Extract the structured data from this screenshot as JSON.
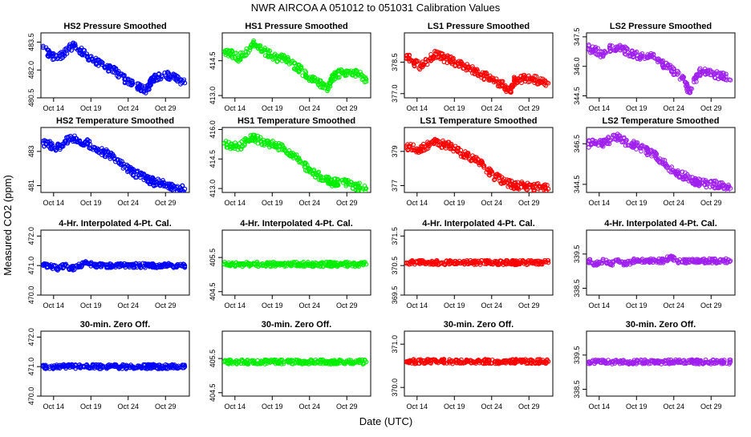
{
  "figure": {
    "main_title": "NWR   AIRCOA A   051012 to 051031   Calibration Values",
    "xlabel": "Date (UTC)",
    "ylabel": "Measured CO2 (ppm)"
  },
  "colors": {
    "HS2": "#0000ff",
    "HS1": "#00ee00",
    "LS1": "#ff0000",
    "LS2": "#a020f0"
  },
  "chart_data": [
    {
      "type": "scatter",
      "row": 0,
      "col": 0,
      "series": "HS2",
      "title": "HS2 Pressure Smoothed",
      "x_ticks": [
        "Oct 14",
        "Oct 19",
        "Oct 24",
        "Oct 29"
      ],
      "x_tick_days": [
        14,
        19,
        24,
        29
      ],
      "xlim": [
        12.3,
        32.2
      ],
      "y_ticks": [
        "480.5",
        "482.0",
        "483.5"
      ],
      "y_tick_values": [
        480.5,
        482.0,
        483.5
      ],
      "ylim": [
        480.5,
        484.0
      ],
      "x": [
        12.6,
        13.5,
        14.5,
        15.5,
        16.5,
        17.5,
        18.5,
        19.5,
        20.5,
        21.5,
        22.5,
        23.5,
        24.5,
        25.5,
        26.5,
        27.0,
        27.5,
        28.5,
        29.5,
        30.5,
        31.6
      ],
      "y": [
        483.2,
        482.8,
        482.6,
        482.9,
        483.3,
        483.1,
        482.7,
        482.5,
        482.3,
        482.1,
        481.9,
        481.5,
        481.3,
        481.1,
        480.9,
        481.3,
        481.6,
        481.7,
        481.7,
        481.5,
        481.3
      ]
    },
    {
      "type": "scatter",
      "row": 0,
      "col": 1,
      "series": "HS1",
      "title": "HS1 Pressure Smoothed",
      "x_ticks": [
        "Oct 14",
        "Oct 19",
        "Oct 24",
        "Oct 29"
      ],
      "x_tick_days": [
        14,
        19,
        24,
        29
      ],
      "xlim": [
        12.3,
        32.2
      ],
      "y_ticks": [
        "413.0",
        "414.5"
      ],
      "y_tick_values": [
        413.0,
        414.5
      ],
      "ylim": [
        412.9,
        415.7
      ],
      "x": [
        12.6,
        13.5,
        14.5,
        15.5,
        16.5,
        17.5,
        18.5,
        19.5,
        20.5,
        21.5,
        22.5,
        23.5,
        24.5,
        25.5,
        26.5,
        27.0,
        27.5,
        28.5,
        29.5,
        30.5,
        31.6
      ],
      "y": [
        414.9,
        414.8,
        414.6,
        414.9,
        415.2,
        415.0,
        414.8,
        414.6,
        414.6,
        414.4,
        414.2,
        413.9,
        413.7,
        413.5,
        413.3,
        413.7,
        413.9,
        414.0,
        414.0,
        413.9,
        413.7
      ]
    },
    {
      "type": "scatter",
      "row": 0,
      "col": 2,
      "series": "LS1",
      "title": "LS1 Pressure Smoothed",
      "x_ticks": [
        "Oct 14",
        "Oct 19",
        "Oct 24",
        "Oct 29"
      ],
      "x_tick_days": [
        14,
        19,
        24,
        29
      ],
      "xlim": [
        12.3,
        32.2
      ],
      "y_ticks": [
        "377.0",
        "378.5"
      ],
      "y_tick_values": [
        377.0,
        378.5
      ],
      "ylim": [
        376.8,
        379.9
      ],
      "x": [
        12.6,
        13.5,
        14.5,
        15.5,
        16.5,
        17.5,
        18.5,
        19.5,
        20.5,
        21.5,
        22.5,
        23.5,
        24.5,
        25.5,
        26.5,
        27.0,
        27.5,
        28.5,
        29.5,
        30.5,
        31.6
      ],
      "y": [
        378.8,
        378.5,
        378.3,
        378.6,
        378.9,
        378.7,
        378.6,
        378.4,
        378.3,
        378.1,
        377.9,
        377.8,
        377.6,
        377.4,
        377.1,
        377.6,
        377.7,
        377.7,
        377.7,
        377.6,
        377.5
      ]
    },
    {
      "type": "scatter",
      "row": 0,
      "col": 3,
      "series": "LS2",
      "title": "LS2 Pressure Smoothed",
      "x_ticks": [
        "Oct 14",
        "Oct 19",
        "Oct 24",
        "Oct 29"
      ],
      "x_tick_days": [
        14,
        19,
        24,
        29
      ],
      "xlim": [
        12.3,
        32.2
      ],
      "y_ticks": [
        "344.5",
        "346.0",
        "347.5"
      ],
      "y_tick_values": [
        344.5,
        346.0,
        347.5
      ],
      "ylim": [
        344.4,
        347.7
      ],
      "x": [
        12.6,
        13.5,
        14.5,
        15.5,
        16.5,
        17.5,
        18.5,
        19.5,
        20.5,
        21.5,
        22.5,
        23.5,
        24.5,
        25.5,
        26.0,
        27.0,
        27.5,
        28.5,
        29.5,
        30.5,
        31.6
      ],
      "y": [
        346.9,
        346.8,
        346.6,
        346.9,
        347.0,
        346.8,
        346.6,
        346.5,
        346.6,
        346.4,
        346.1,
        345.9,
        345.6,
        345.2,
        344.7,
        345.4,
        345.7,
        345.7,
        345.6,
        345.5,
        345.3
      ]
    },
    {
      "type": "scatter",
      "row": 1,
      "col": 0,
      "series": "HS2",
      "title": "HS2 Temperature Smoothed",
      "x_ticks": [
        "Oct 14",
        "Oct 19",
        "Oct 24",
        "Oct 29"
      ],
      "x_tick_days": [
        14,
        19,
        24,
        29
      ],
      "xlim": [
        12.3,
        32.2
      ],
      "y_ticks": [
        "481",
        "483"
      ],
      "y_tick_values": [
        481,
        483
      ],
      "ylim": [
        480.6,
        484.4
      ],
      "x": [
        12.6,
        13.5,
        14.5,
        15.5,
        16.5,
        17.5,
        18.5,
        19.5,
        20.5,
        21.5,
        22.5,
        23.5,
        24.5,
        25.5,
        26.5,
        27.0,
        27.5,
        28.5,
        29.5,
        30.5,
        31.6
      ],
      "y": [
        483.5,
        483.4,
        483.2,
        483.6,
        483.8,
        483.6,
        483.5,
        483.2,
        483.0,
        482.8,
        482.5,
        482.1,
        481.8,
        481.6,
        481.4,
        481.3,
        481.2,
        481.2,
        481.0,
        480.9,
        480.8
      ]
    },
    {
      "type": "scatter",
      "row": 1,
      "col": 1,
      "series": "HS1",
      "title": "HS1 Temperature Smoothed",
      "x_ticks": [
        "Oct 14",
        "Oct 19",
        "Oct 24",
        "Oct 29"
      ],
      "x_tick_days": [
        14,
        19,
        24,
        29
      ],
      "xlim": [
        12.3,
        32.2
      ],
      "y_ticks": [
        "413.0",
        "414.5",
        "416.0"
      ],
      "y_tick_values": [
        413.0,
        414.5,
        416.0
      ],
      "ylim": [
        412.8,
        416.1
      ],
      "x": [
        12.6,
        13.5,
        14.5,
        15.5,
        16.5,
        17.5,
        18.5,
        19.5,
        20.5,
        21.5,
        22.5,
        23.5,
        24.5,
        25.5,
        26.5,
        27.0,
        27.5,
        28.5,
        29.5,
        30.5,
        31.6
      ],
      "y": [
        415.3,
        415.2,
        415.1,
        415.4,
        415.6,
        415.4,
        415.3,
        415.2,
        415.0,
        414.8,
        414.5,
        414.1,
        413.8,
        413.6,
        413.4,
        413.3,
        413.3,
        413.3,
        413.2,
        413.1,
        413.0
      ]
    },
    {
      "type": "scatter",
      "row": 1,
      "col": 2,
      "series": "LS1",
      "title": "LS1 Temperature Smoothed",
      "x_ticks": [
        "Oct 14",
        "Oct 19",
        "Oct 24",
        "Oct 29"
      ],
      "x_tick_days": [
        14,
        19,
        24,
        29
      ],
      "xlim": [
        12.3,
        32.2
      ],
      "y_ticks": [
        "377",
        "379"
      ],
      "y_tick_values": [
        377,
        379
      ],
      "ylim": [
        376.6,
        380.4
      ],
      "x": [
        12.6,
        13.5,
        14.5,
        15.5,
        16.5,
        17.5,
        18.5,
        19.5,
        20.5,
        21.5,
        22.5,
        23.5,
        24.5,
        25.5,
        26.5,
        27.0,
        27.5,
        28.5,
        29.5,
        30.5,
        31.6
      ],
      "y": [
        379.3,
        379.2,
        379.1,
        379.4,
        379.6,
        379.4,
        379.3,
        379.0,
        378.8,
        378.6,
        378.3,
        377.9,
        377.5,
        377.3,
        377.1,
        377.0,
        377.0,
        377.0,
        376.9,
        376.9,
        376.8
      ]
    },
    {
      "type": "scatter",
      "row": 1,
      "col": 3,
      "series": "LS2",
      "title": "LS2 Temperature Smoothed",
      "x_ticks": [
        "Oct 14",
        "Oct 19",
        "Oct 24",
        "Oct 29"
      ],
      "x_tick_days": [
        14,
        19,
        24,
        29
      ],
      "xlim": [
        12.3,
        32.2
      ],
      "y_ticks": [
        "344.5",
        "346.5"
      ],
      "y_tick_values": [
        344.5,
        346.5
      ],
      "ylim": [
        344.1,
        347.3
      ],
      "x": [
        12.6,
        13.5,
        14.5,
        15.5,
        16.5,
        17.5,
        18.5,
        19.5,
        20.5,
        21.5,
        22.5,
        23.5,
        24.5,
        25.5,
        26.5,
        27.0,
        27.5,
        28.5,
        29.5,
        30.5,
        31.6
      ],
      "y": [
        346.5,
        346.6,
        346.5,
        346.7,
        346.8,
        346.6,
        346.5,
        346.3,
        346.1,
        345.9,
        345.6,
        345.3,
        345.0,
        344.9,
        344.7,
        344.6,
        344.6,
        344.5,
        344.5,
        344.4,
        344.3
      ]
    },
    {
      "type": "scatter",
      "row": 2,
      "col": 0,
      "series": "HS2",
      "title": "4-Hr. Interpolated 4-Pt. Cal.",
      "x_ticks": [
        "Oct 14",
        "Oct 19",
        "Oct 24",
        "Oct 29"
      ],
      "x_tick_days": [
        14,
        19,
        24,
        29
      ],
      "xlim": [
        12.3,
        32.2
      ],
      "y_ticks": [
        "470.0",
        "471.0",
        "472.0"
      ],
      "y_tick_values": [
        470.0,
        471.0,
        472.0
      ],
      "ylim": [
        470.0,
        472.2
      ],
      "x": [
        12.6,
        13.5,
        14.5,
        15.5,
        16.5,
        17.5,
        18.5,
        19.5,
        20.5,
        21.5,
        22.5,
        23.5,
        24.5,
        25.5,
        26.5,
        27.0,
        27.5,
        28.5,
        29.5,
        30.5,
        31.6
      ],
      "y": [
        471.0,
        471.0,
        470.9,
        471.0,
        470.9,
        471.0,
        471.1,
        471.0,
        471.0,
        471.0,
        471.0,
        471.0,
        471.0,
        471.0,
        471.0,
        471.0,
        471.0,
        471.0,
        471.0,
        471.0,
        471.0
      ]
    },
    {
      "type": "scatter",
      "row": 2,
      "col": 1,
      "series": "HS1",
      "title": "4-Hr. Interpolated 4-Pt. Cal.",
      "x_ticks": [
        "Oct 14",
        "Oct 19",
        "Oct 24",
        "Oct 29"
      ],
      "x_tick_days": [
        14,
        19,
        24,
        29
      ],
      "xlim": [
        12.3,
        32.2
      ],
      "y_ticks": [
        "404.5",
        "405.5"
      ],
      "y_tick_values": [
        404.5,
        405.5
      ],
      "ylim": [
        404.4,
        406.3
      ],
      "x": [
        12.6,
        13.5,
        14.5,
        15.5,
        16.5,
        17.5,
        18.5,
        19.5,
        20.5,
        21.5,
        22.5,
        23.5,
        24.5,
        25.5,
        26.5,
        27.0,
        27.5,
        28.5,
        29.5,
        30.5,
        31.6
      ],
      "y": [
        405.3,
        405.3,
        405.3,
        405.3,
        405.3,
        405.3,
        405.3,
        405.3,
        405.3,
        405.3,
        405.3,
        405.3,
        405.3,
        405.3,
        405.3,
        405.3,
        405.3,
        405.3,
        405.3,
        405.3,
        405.3
      ]
    },
    {
      "type": "scatter",
      "row": 2,
      "col": 2,
      "series": "LS1",
      "title": "4-Hr. Interpolated 4-Pt. Cal.",
      "x_ticks": [
        "Oct 14",
        "Oct 19",
        "Oct 24",
        "Oct 29"
      ],
      "x_tick_days": [
        14,
        19,
        24,
        29
      ],
      "xlim": [
        12.3,
        32.2
      ],
      "y_ticks": [
        "369.5",
        "370.5",
        "371.5"
      ],
      "y_tick_values": [
        369.5,
        370.5,
        371.5
      ],
      "ylim": [
        369.5,
        371.7
      ],
      "x": [
        12.6,
        13.5,
        14.5,
        15.5,
        16.5,
        17.5,
        18.5,
        19.5,
        20.5,
        21.5,
        22.5,
        23.5,
        24.5,
        25.5,
        26.5,
        27.0,
        27.5,
        28.5,
        29.5,
        30.5,
        31.6
      ],
      "y": [
        370.6,
        370.6,
        370.6,
        370.6,
        370.6,
        370.6,
        370.6,
        370.6,
        370.6,
        370.6,
        370.6,
        370.6,
        370.6,
        370.6,
        370.6,
        370.6,
        370.6,
        370.6,
        370.6,
        370.6,
        370.6
      ]
    },
    {
      "type": "scatter",
      "row": 2,
      "col": 3,
      "series": "LS2",
      "title": "4-Hr. Interpolated 4-Pt. Cal.",
      "x_ticks": [
        "Oct 14",
        "Oct 19",
        "Oct 24",
        "Oct 29"
      ],
      "x_tick_days": [
        14,
        19,
        24,
        29
      ],
      "xlim": [
        12.3,
        32.2
      ],
      "y_ticks": [
        "338.5",
        "339.5"
      ],
      "y_tick_values": [
        338.5,
        339.5
      ],
      "ylim": [
        338.3,
        340.2
      ],
      "x": [
        12.6,
        13.5,
        14.5,
        15.5,
        16.5,
        17.5,
        18.5,
        19.5,
        20.5,
        21.5,
        22.5,
        23.5,
        24.5,
        25.5,
        26.5,
        27.0,
        27.5,
        28.5,
        29.5,
        30.5,
        31.6
      ],
      "y": [
        339.3,
        339.2,
        339.3,
        339.2,
        339.3,
        339.2,
        339.3,
        339.3,
        339.3,
        339.3,
        339.3,
        339.4,
        339.3,
        339.3,
        339.3,
        339.3,
        339.3,
        339.3,
        339.3,
        339.3,
        339.3
      ]
    },
    {
      "type": "scatter",
      "row": 3,
      "col": 0,
      "series": "HS2",
      "title": "30-min. Zero Off.",
      "x_ticks": [
        "Oct 14",
        "Oct 19",
        "Oct 24",
        "Oct 29"
      ],
      "x_tick_days": [
        14,
        19,
        24,
        29
      ],
      "xlim": [
        12.3,
        32.2
      ],
      "y_ticks": [
        "470.0",
        "471.0",
        "472.0"
      ],
      "y_tick_values": [
        470.0,
        471.0,
        472.0
      ],
      "ylim": [
        470.0,
        472.2
      ],
      "x": [
        12.6,
        13.5,
        14.5,
        15.5,
        16.5,
        17.5,
        18.5,
        19.5,
        20.5,
        21.5,
        22.5,
        23.5,
        24.5,
        25.5,
        26.5,
        27.0,
        27.5,
        28.5,
        29.5,
        30.5,
        31.6
      ],
      "y": [
        471.0,
        471.0,
        471.0,
        471.0,
        471.0,
        471.0,
        471.0,
        471.0,
        471.0,
        471.0,
        471.0,
        471.0,
        471.0,
        471.0,
        471.0,
        471.0,
        471.0,
        471.0,
        471.0,
        471.0,
        471.0
      ]
    },
    {
      "type": "scatter",
      "row": 3,
      "col": 1,
      "series": "HS1",
      "title": "30-min. Zero Off.",
      "x_ticks": [
        "Oct 14",
        "Oct 19",
        "Oct 24",
        "Oct 29"
      ],
      "x_tick_days": [
        14,
        19,
        24,
        29
      ],
      "xlim": [
        12.3,
        32.2
      ],
      "y_ticks": [
        "404.5",
        "405.5"
      ],
      "y_tick_values": [
        404.5,
        405.5
      ],
      "ylim": [
        404.4,
        406.3
      ],
      "x": [
        12.6,
        13.5,
        14.5,
        15.5,
        16.5,
        17.5,
        18.5,
        19.5,
        20.5,
        21.5,
        22.5,
        23.5,
        24.5,
        25.5,
        26.5,
        27.0,
        27.5,
        28.5,
        29.5,
        30.5,
        31.6
      ],
      "y": [
        405.4,
        405.4,
        405.4,
        405.4,
        405.4,
        405.4,
        405.4,
        405.4,
        405.4,
        405.4,
        405.4,
        405.4,
        405.4,
        405.4,
        405.4,
        405.4,
        405.4,
        405.4,
        405.4,
        405.4,
        405.4
      ]
    },
    {
      "type": "scatter",
      "row": 3,
      "col": 2,
      "series": "LS1",
      "title": "30-min. Zero Off.",
      "x_ticks": [
        "Oct 14",
        "Oct 19",
        "Oct 24",
        "Oct 29"
      ],
      "x_tick_days": [
        14,
        19,
        24,
        29
      ],
      "xlim": [
        12.3,
        32.2
      ],
      "y_ticks": [
        "370.0",
        "371.0"
      ],
      "y_tick_values": [
        370.0,
        371.0
      ],
      "ylim": [
        369.8,
        371.3
      ],
      "x": [
        12.6,
        13.5,
        14.5,
        15.5,
        16.5,
        17.5,
        18.5,
        19.5,
        20.5,
        21.5,
        22.5,
        23.5,
        24.5,
        25.5,
        26.5,
        27.0,
        27.5,
        28.5,
        29.5,
        30.5,
        31.6
      ],
      "y": [
        370.6,
        370.6,
        370.6,
        370.6,
        370.6,
        370.6,
        370.6,
        370.6,
        370.6,
        370.6,
        370.6,
        370.6,
        370.6,
        370.6,
        370.6,
        370.6,
        370.6,
        370.6,
        370.6,
        370.6,
        370.6
      ]
    },
    {
      "type": "scatter",
      "row": 3,
      "col": 3,
      "series": "LS2",
      "title": "30-min. Zero Off.",
      "x_ticks": [
        "Oct 14",
        "Oct 19",
        "Oct 24",
        "Oct 29"
      ],
      "x_tick_days": [
        14,
        19,
        24,
        29
      ],
      "xlim": [
        12.3,
        32.2
      ],
      "y_ticks": [
        "338.5",
        "339.5"
      ],
      "y_tick_values": [
        338.5,
        339.5
      ],
      "ylim": [
        338.3,
        340.2
      ],
      "x": [
        12.6,
        13.5,
        14.5,
        15.5,
        16.5,
        17.5,
        18.5,
        19.5,
        20.5,
        21.5,
        22.5,
        23.5,
        24.5,
        25.5,
        26.5,
        27.0,
        27.5,
        28.5,
        29.5,
        30.5,
        31.6
      ],
      "y": [
        339.3,
        339.3,
        339.3,
        339.3,
        339.3,
        339.3,
        339.3,
        339.3,
        339.3,
        339.3,
        339.3,
        339.3,
        339.3,
        339.3,
        339.3,
        339.3,
        339.3,
        339.3,
        339.3,
        339.3,
        339.3
      ]
    }
  ]
}
